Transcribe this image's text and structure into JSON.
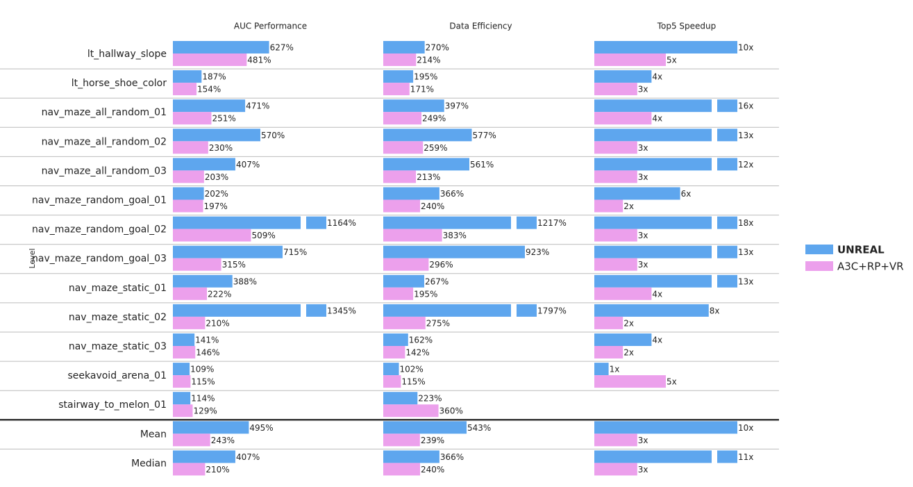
{
  "chart_data": [
    {
      "type": "bar",
      "title": "AUC Performance",
      "ylabel": "Level",
      "categories": [
        "lt_hallway_slope",
        "lt_horse_shoe_color",
        "nav_maze_all_random_01",
        "nav_maze_all_random_02",
        "nav_maze_all_random_03",
        "nav_maze_random_goal_01",
        "nav_maze_random_goal_02",
        "nav_maze_random_goal_03",
        "nav_maze_static_01",
        "nav_maze_static_02",
        "nav_maze_static_03",
        "seekavoid_arena_01",
        "stairway_to_melon_01",
        "Mean",
        "Median"
      ],
      "xlim": [
        0,
        1000
      ],
      "legend": "right",
      "series": [
        {
          "name": "UNREAL",
          "color": "#5ea6ee",
          "values": [
            627,
            187,
            471,
            570,
            407,
            202,
            1164,
            715,
            388,
            1345,
            141,
            109,
            114,
            495,
            407
          ],
          "value_labels": [
            "627%",
            "187%",
            "471%",
            "570%",
            "407%",
            "202%",
            "1164%",
            "715%",
            "388%",
            "1345%",
            "141%",
            "109%",
            "114%",
            "495%",
            "407%"
          ]
        },
        {
          "name": "A3C+RP+VR",
          "color": "#eca0ec",
          "values": [
            481,
            154,
            251,
            230,
            203,
            197,
            509,
            315,
            222,
            210,
            146,
            115,
            129,
            243,
            210
          ],
          "value_labels": [
            "481%",
            "154%",
            "251%",
            "230%",
            "203%",
            "197%",
            "509%",
            "315%",
            "222%",
            "210%",
            "146%",
            "115%",
            "129%",
            "243%",
            "210%"
          ]
        }
      ]
    },
    {
      "type": "bar",
      "title": "Data Efficiency",
      "xlim": [
        0,
        1000
      ],
      "series": [
        {
          "color": "#5ea6ee",
          "values": [
            270,
            195,
            397,
            577,
            561,
            366,
            1217,
            923,
            267,
            1797,
            162,
            102,
            223,
            543,
            366
          ],
          "value_labels": [
            "270%",
            "195%",
            "397%",
            "577%",
            "561%",
            "366%",
            "1217%",
            "923%",
            "267%",
            "1797%",
            "162%",
            "102%",
            "223%",
            "543%",
            "366%"
          ]
        },
        {
          "color": "#eca0ec",
          "values": [
            214,
            171,
            249,
            259,
            213,
            240,
            383,
            296,
            195,
            275,
            142,
            115,
            360,
            239,
            240
          ],
          "value_labels": [
            "214%",
            "171%",
            "249%",
            "259%",
            "213%",
            "240%",
            "383%",
            "296%",
            "195%",
            "275%",
            "142%",
            "115%",
            "360%",
            "239%",
            "240%"
          ]
        }
      ]
    },
    {
      "type": "bar",
      "title": "Top5 Speedup",
      "xlim": [
        0,
        10
      ],
      "series": [
        {
          "color": "#5ea6ee",
          "values": [
            10,
            4,
            16,
            13,
            12,
            6,
            18,
            13,
            13,
            8,
            4,
            1,
            null,
            10,
            11
          ],
          "value_labels": [
            "10x",
            "4x",
            "16x",
            "13x",
            "12x",
            "6x",
            "18x",
            "13x",
            "13x",
            "8x",
            "4x",
            "1x",
            null,
            "10x",
            "11x"
          ]
        },
        {
          "color": "#eca0ec",
          "values": [
            5,
            3,
            4,
            3,
            3,
            2,
            3,
            3,
            4,
            2,
            2,
            5,
            null,
            3,
            3
          ],
          "value_labels": [
            "5x",
            "3x",
            "4x",
            "3x",
            "3x",
            "2x",
            "3x",
            "3x",
            "4x",
            "2x",
            "2x",
            "5x",
            null,
            "3x",
            "3x"
          ]
        }
      ]
    }
  ]
}
